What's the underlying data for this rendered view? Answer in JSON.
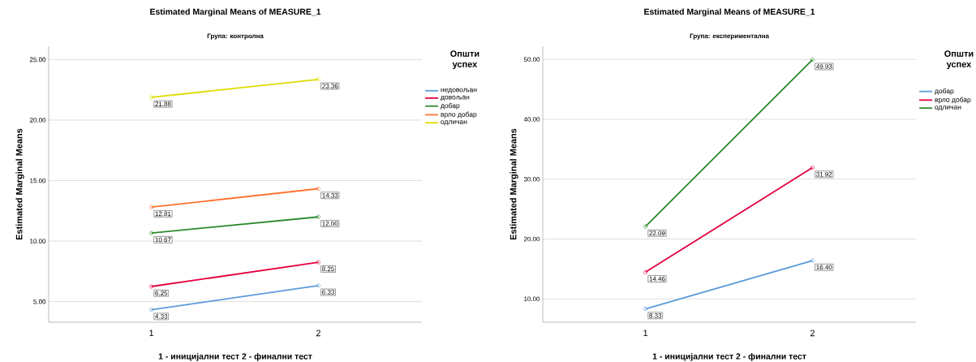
{
  "chart_data": [
    {
      "type": "line",
      "title": "Estimated Marginal Means of MEASURE_1",
      "subtitle": "Група: контролна",
      "xlabel": "1 - иницијални тест 2 - финални тест",
      "ylabel": "Estimated Marginal Means",
      "legend_title": "Општи успех",
      "categories": [
        "1",
        "2"
      ],
      "series": [
        {
          "name": "недовољан",
          "color": "#5b9bdc",
          "values": [
            4.33,
            6.33
          ],
          "value_labels": [
            "4.33",
            "6.33"
          ]
        },
        {
          "name": "довољан",
          "color": "#e4003f",
          "values": [
            6.25,
            8.25
          ],
          "value_labels": [
            "6.25",
            "8.25"
          ]
        },
        {
          "name": "добар",
          "color": "#2c8a2c",
          "values": [
            10.67,
            12.0
          ],
          "value_labels": [
            "10.67",
            "12.00"
          ]
        },
        {
          "name": "врло добар",
          "color": "#ff7433",
          "values": [
            12.81,
            14.33
          ],
          "value_labels": [
            "12.81",
            "14.33"
          ]
        },
        {
          "name": "одличан",
          "color": "#dcdc00",
          "values": [
            21.88,
            23.36
          ],
          "value_labels": [
            "21.88",
            "23.36"
          ]
        }
      ],
      "ylim": [
        3.3,
        26.1
      ],
      "yticks": [
        {
          "value": 5,
          "label": "5.00"
        },
        {
          "value": 10,
          "label": "10.00"
        },
        {
          "value": 15,
          "label": "15.00"
        },
        {
          "value": 20,
          "label": "20.00"
        },
        {
          "value": 25,
          "label": "25.00"
        }
      ],
      "grid": "y",
      "legend": "right",
      "marker": "circle",
      "line_style": "solid"
    },
    {
      "type": "line",
      "title": "Estimated Marginal Means of MEASURE_1",
      "subtitle": "Група: експериментална",
      "xlabel": "1 - иницијални тест 2 - финални тест",
      "ylabel": "Estimated Marginal Means",
      "legend_title": "Општи успех",
      "categories": [
        "1",
        "2"
      ],
      "series": [
        {
          "name": "добар",
          "color": "#5b9bdc",
          "values": [
            8.33,
            16.4
          ],
          "value_labels": [
            "8.33",
            "16.40"
          ]
        },
        {
          "name": "врло добар",
          "color": "#e4003f",
          "values": [
            14.46,
            31.92
          ],
          "value_labels": [
            "14.46",
            "31.92"
          ]
        },
        {
          "name": "одличан",
          "color": "#2c8a2c",
          "values": [
            22.09,
            49.93
          ],
          "value_labels": [
            "22.09",
            "49.93"
          ]
        }
      ],
      "ylim": [
        6.1,
        52.2
      ],
      "yticks": [
        {
          "value": 10,
          "label": "10.00"
        },
        {
          "value": 20,
          "label": "20.00"
        },
        {
          "value": 30,
          "label": "30.00"
        },
        {
          "value": 40,
          "label": "40.00"
        },
        {
          "value": 50,
          "label": "50.00"
        }
      ],
      "grid": "y",
      "legend": "right",
      "marker": "circle",
      "line_style": "solid"
    }
  ]
}
